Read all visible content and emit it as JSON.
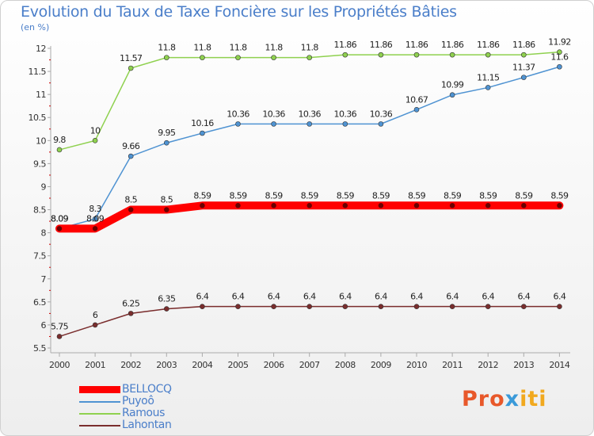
{
  "header": {
    "title": "Evolution du Taux de Taxe Foncière sur les Propriétés Bâties",
    "unit": "(en %)"
  },
  "logo": {
    "parts": [
      "Pro",
      "x",
      "iti"
    ],
    "colors": [
      "#e8582a",
      "#3a9ad9",
      "#f1a91f"
    ]
  },
  "chart_data": {
    "type": "line",
    "title": "Evolution du Taux de Taxe Foncière sur les Propriétés Bâties",
    "ylabel": "(en %)",
    "xlabel": "",
    "ylim": [
      5.5,
      12
    ],
    "yticks": [
      5.5,
      6,
      6.5,
      7,
      7.5,
      8,
      8.5,
      9,
      9.5,
      10,
      10.5,
      11,
      11.5,
      12
    ],
    "ytick_labels": [
      "5.5",
      "6",
      "6.5",
      "7",
      "7.5",
      "8",
      "8.5",
      "9",
      "9.5",
      "10",
      "10.5",
      "11",
      "11.5",
      "12"
    ],
    "grid": false,
    "legend_position": "bottom-left",
    "x": [
      "2000",
      "2001",
      "2002",
      "2003",
      "2004",
      "2005",
      "2006",
      "2007",
      "2008",
      "2009",
      "2010",
      "2011",
      "2012",
      "2013",
      "2014"
    ],
    "series": [
      {
        "name": "BELLOCQ",
        "color": "#ff0000",
        "emphasis": true,
        "values": [
          8.09,
          8.09,
          8.5,
          8.5,
          8.59,
          8.59,
          8.59,
          8.59,
          8.59,
          8.59,
          8.59,
          8.59,
          8.59,
          8.59,
          8.59
        ],
        "labels": [
          "8.09",
          "8.09",
          "8.5",
          "8.5",
          "8.59",
          "8.59",
          "8.59",
          "8.59",
          "8.59",
          "8.59",
          "8.59",
          "8.59",
          "8.59",
          "8.59",
          "8.59"
        ]
      },
      {
        "name": "Puyoô",
        "color": "#4f93d2",
        "values": [
          8.09,
          8.3,
          9.66,
          9.95,
          10.16,
          10.36,
          10.36,
          10.36,
          10.36,
          10.36,
          10.67,
          10.99,
          11.15,
          11.37,
          11.6
        ],
        "labels": [
          "8.09",
          "8.3",
          "9.66",
          "9.95",
          "10.16",
          "10.36",
          "10.36",
          "10.36",
          "10.36",
          "10.36",
          "10.67",
          "10.99",
          "11.15",
          "11.37",
          "11.6"
        ]
      },
      {
        "name": "Ramous",
        "color": "#8fd14f",
        "values": [
          9.8,
          10,
          11.57,
          11.8,
          11.8,
          11.8,
          11.8,
          11.8,
          11.86,
          11.86,
          11.86,
          11.86,
          11.86,
          11.86,
          11.92
        ],
        "labels": [
          "9.8",
          "10",
          "11.57",
          "11.8",
          "11.8",
          "11.8",
          "11.8",
          "11.8",
          "11.86",
          "11.86",
          "11.86",
          "11.86",
          "11.86",
          "11.86",
          "11.92"
        ]
      },
      {
        "name": "Lahontan",
        "color": "#7a2d2d",
        "values": [
          5.75,
          6,
          6.25,
          6.35,
          6.4,
          6.4,
          6.4,
          6.4,
          6.4,
          6.4,
          6.4,
          6.4,
          6.4,
          6.4,
          6.4
        ],
        "labels": [
          "5.75",
          "6",
          "6.25",
          "6.35",
          "6.4",
          "6.4",
          "6.4",
          "6.4",
          "6.4",
          "6.4",
          "6.4",
          "6.4",
          "6.4",
          "6.4",
          "6.4"
        ]
      }
    ]
  }
}
